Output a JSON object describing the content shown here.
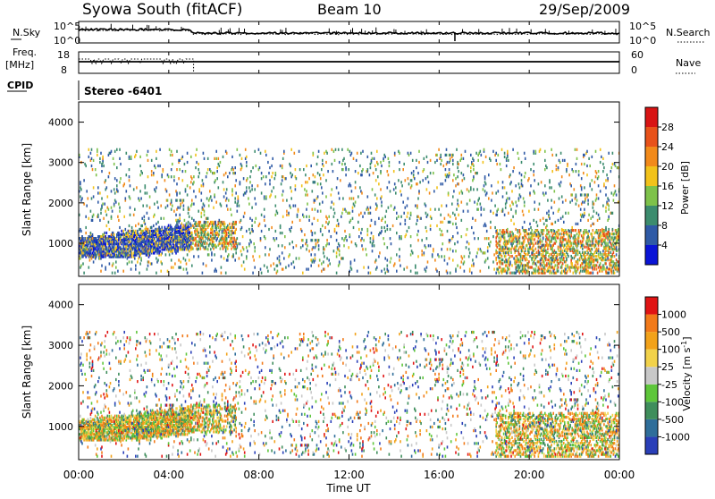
{
  "header": {
    "station": "Syowa South (fitACF)",
    "beam": "Beam 10",
    "date": "29/Sep/2009"
  },
  "noise_panel": {
    "left_label": "N.Sky",
    "right_label": "N.Search",
    "left_ticks": [
      "10^5",
      "10^0"
    ],
    "right_ticks": [
      "10^5",
      "10^0"
    ]
  },
  "freq_panel": {
    "left_label_top": "Freq.",
    "left_label_unit": "[MHz]",
    "right_label": "Nave",
    "left_ticks": [
      "18",
      "8"
    ],
    "right_ticks": [
      "60",
      "0"
    ]
  },
  "cpid": {
    "label": "CPID",
    "value": "Stereo -6401"
  },
  "x_axis": {
    "label": "Time UT",
    "ticks": [
      "00:00",
      "04:00",
      "08:00",
      "12:00",
      "16:00",
      "20:00",
      "00:00"
    ]
  },
  "chart_data": [
    {
      "type": "heatmap",
      "panel": "power",
      "ylabel": "Slant Range [km]",
      "yticks": [
        1000,
        2000,
        3000,
        4000
      ],
      "ylim": [
        180,
        4500
      ],
      "xlim_hours": [
        0,
        24
      ],
      "colorbar": {
        "label": "Power [dB]",
        "ticks": [
          "4",
          "8",
          "12",
          "16",
          "20",
          "24",
          "28"
        ],
        "bins": [
          {
            "color": "#0a14d6"
          },
          {
            "color": "#2f5aa6"
          },
          {
            "color": "#3c8c6e"
          },
          {
            "color": "#7ec24a"
          },
          {
            "color": "#f2c21a"
          },
          {
            "color": "#f28a1a"
          },
          {
            "color": "#e8521a"
          },
          {
            "color": "#d81414"
          }
        ]
      },
      "echo_regions": [
        {
          "hours": [
            0.0,
            5.0
          ],
          "range_km": [
            700,
            1700
          ],
          "dominant": "blue",
          "density": 0.75
        },
        {
          "hours": [
            5.0,
            7.0
          ],
          "range_km": [
            900,
            1600
          ],
          "dominant": "orange",
          "density": 0.35
        },
        {
          "hours": [
            18.5,
            24.0
          ],
          "range_km": [
            300,
            1400
          ],
          "dominant": "orange",
          "density": 0.35
        },
        {
          "hours": [
            0.0,
            24.0
          ],
          "range_km": [
            300,
            3400
          ],
          "dominant": "mixed",
          "density": 0.05
        }
      ]
    },
    {
      "type": "heatmap",
      "panel": "velocity",
      "ylabel": "Slant Range [km]",
      "yticks": [
        1000,
        2000,
        3000,
        4000
      ],
      "ylim": [
        180,
        4500
      ],
      "xlim_hours": [
        0,
        24
      ],
      "colorbar": {
        "label": "Velocity [m s",
        "label_sup": "-1",
        "label_close": "]",
        "ticks": [
          "1000",
          "500",
          "100",
          "25",
          "-25",
          "-100",
          "-500",
          "-1000"
        ],
        "bins": [
          {
            "color": "#2a3fb8"
          },
          {
            "color": "#2f6e9a"
          },
          {
            "color": "#3f8e5c"
          },
          {
            "color": "#5ec63a"
          },
          {
            "color": "#c8c8c8"
          },
          {
            "color": "#f2d24a"
          },
          {
            "color": "#f2a21a"
          },
          {
            "color": "#f27a1a"
          },
          {
            "color": "#e01414"
          }
        ]
      },
      "echo_regions": [
        {
          "hours": [
            0.0,
            5.0
          ],
          "range_km": [
            700,
            1700
          ],
          "dominant": "orange",
          "density": 0.75
        },
        {
          "hours": [
            5.0,
            7.0
          ],
          "range_km": [
            900,
            1600
          ],
          "dominant": "orange",
          "density": 0.35
        },
        {
          "hours": [
            18.5,
            24.0
          ],
          "range_km": [
            300,
            1400
          ],
          "dominant": "orange",
          "density": 0.35
        },
        {
          "hours": [
            0.0,
            24.0
          ],
          "range_km": [
            300,
            3400
          ],
          "dominant": "mixed",
          "density": 0.05
        }
      ]
    }
  ]
}
